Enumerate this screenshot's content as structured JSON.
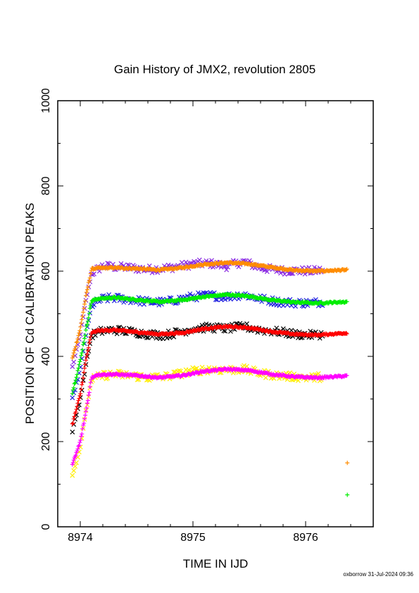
{
  "chart_data": {
    "type": "scatter",
    "title": "Gain History of JMX2, revolution 2805",
    "xlabel": "TIME IN IJD",
    "ylabel": "POSITION OF Cd CALIBRATION PEAKS",
    "xlim": [
      8973.8,
      8976.6
    ],
    "ylim": [
      0,
      1000
    ],
    "xticks": [
      8974,
      8975,
      8976
    ],
    "yticks": [
      0,
      200,
      400,
      600,
      800,
      1000
    ],
    "grid": false,
    "colors": {
      "purple": "#8a2be2",
      "orange": "#ff8c00",
      "blue": "#1f1fe0",
      "green": "#00ee00",
      "black": "#000000",
      "red": "#ff0000",
      "yellow": "#ffee00",
      "magenta": "#ff00ff"
    },
    "series": [
      {
        "color": "purple",
        "marker": "x",
        "noise": 9,
        "x": [
          8973.93,
          8974.0,
          8974.05,
          8974.1,
          8974.2,
          8974.3,
          8974.45,
          8974.6,
          8974.75,
          8974.9,
          8975.0,
          8975.15,
          8975.3,
          8975.45,
          8975.6,
          8975.75,
          8975.9,
          8976.05,
          8976.15
        ],
        "y": [
          375,
          450,
          530,
          595,
          612,
          610,
          608,
          604,
          607,
          612,
          617,
          618,
          612,
          622,
          608,
          602,
          601,
          600,
          602
        ]
      },
      {
        "color": "orange",
        "marker": "+",
        "noise": 2,
        "x": [
          8973.93,
          8974.0,
          8974.05,
          8974.1,
          8974.15,
          8974.3,
          8974.5,
          8974.7,
          8974.9,
          8975.1,
          8975.3,
          8975.5,
          8975.7,
          8975.9,
          8976.1,
          8976.37
        ],
        "y": [
          395,
          465,
          540,
          605,
          607,
          608,
          606,
          603,
          608,
          616,
          620,
          617,
          609,
          602,
          600,
          603
        ]
      },
      {
        "color": "blue",
        "marker": "x",
        "noise": 9,
        "x": [
          8973.93,
          8974.0,
          8974.05,
          8974.1,
          8974.2,
          8974.3,
          8974.45,
          8974.6,
          8974.75,
          8974.9,
          8975.0,
          8975.15,
          8975.3,
          8975.45,
          8975.6,
          8975.75,
          8975.9,
          8976.05,
          8976.15
        ],
        "y": [
          300,
          370,
          450,
          520,
          535,
          537,
          533,
          528,
          527,
          535,
          540,
          543,
          540,
          545,
          535,
          528,
          526,
          525,
          528
        ]
      },
      {
        "color": "green",
        "marker": "+",
        "noise": 2,
        "x": [
          8973.93,
          8974.0,
          8974.05,
          8974.1,
          8974.15,
          8974.3,
          8974.5,
          8974.7,
          8974.9,
          8975.1,
          8975.3,
          8975.5,
          8975.7,
          8975.9,
          8976.1,
          8976.37
        ],
        "y": [
          315,
          390,
          460,
          530,
          535,
          538,
          533,
          528,
          532,
          540,
          545,
          541,
          532,
          527,
          525,
          528
        ]
      },
      {
        "color": "black",
        "marker": "x",
        "noise": 9,
        "x": [
          8973.93,
          8974.0,
          8974.05,
          8974.1,
          8974.2,
          8974.3,
          8974.45,
          8974.6,
          8974.75,
          8974.9,
          8975.0,
          8975.15,
          8975.3,
          8975.45,
          8975.6,
          8975.75,
          8975.9,
          8976.05,
          8976.15
        ],
        "y": [
          225,
          300,
          380,
          450,
          460,
          462,
          458,
          452,
          450,
          458,
          465,
          468,
          465,
          470,
          462,
          458,
          452,
          450,
          452
        ]
      },
      {
        "color": "red",
        "marker": "+",
        "noise": 2,
        "x": [
          8973.93,
          8974.0,
          8974.05,
          8974.1,
          8974.15,
          8974.3,
          8974.5,
          8974.7,
          8974.9,
          8975.1,
          8975.3,
          8975.5,
          8975.7,
          8975.9,
          8976.1,
          8976.37
        ],
        "y": [
          240,
          310,
          390,
          455,
          460,
          462,
          457,
          452,
          455,
          465,
          470,
          467,
          458,
          452,
          450,
          455
        ]
      },
      {
        "color": "yellow",
        "marker": "x",
        "noise": 9,
        "x": [
          8973.93,
          8974.0,
          8974.05,
          8974.1,
          8974.2,
          8974.3,
          8974.45,
          8974.6,
          8974.75,
          8974.9,
          8975.0,
          8975.15,
          8975.3,
          8975.45,
          8975.6,
          8975.75,
          8975.9,
          8976.05,
          8976.15
        ],
        "y": [
          120,
          185,
          270,
          345,
          355,
          358,
          355,
          350,
          352,
          360,
          365,
          370,
          368,
          370,
          360,
          355,
          352,
          350,
          352
        ]
      },
      {
        "color": "magenta",
        "marker": "+",
        "noise": 2,
        "x": [
          8973.93,
          8974.0,
          8974.05,
          8974.1,
          8974.15,
          8974.3,
          8974.5,
          8974.7,
          8974.9,
          8975.1,
          8975.3,
          8975.5,
          8975.7,
          8975.9,
          8976.1,
          8976.37
        ],
        "y": [
          145,
          200,
          270,
          350,
          357,
          358,
          355,
          350,
          355,
          365,
          370,
          367,
          358,
          352,
          350,
          354
        ]
      }
    ],
    "isolated_points": [
      {
        "color": "orange",
        "marker": "+",
        "x": 8976.37,
        "y": 150
      },
      {
        "color": "green",
        "marker": "+",
        "x": 8976.37,
        "y": 75
      }
    ],
    "footer": "oxborrow 31-Jul-2024 09:36"
  }
}
